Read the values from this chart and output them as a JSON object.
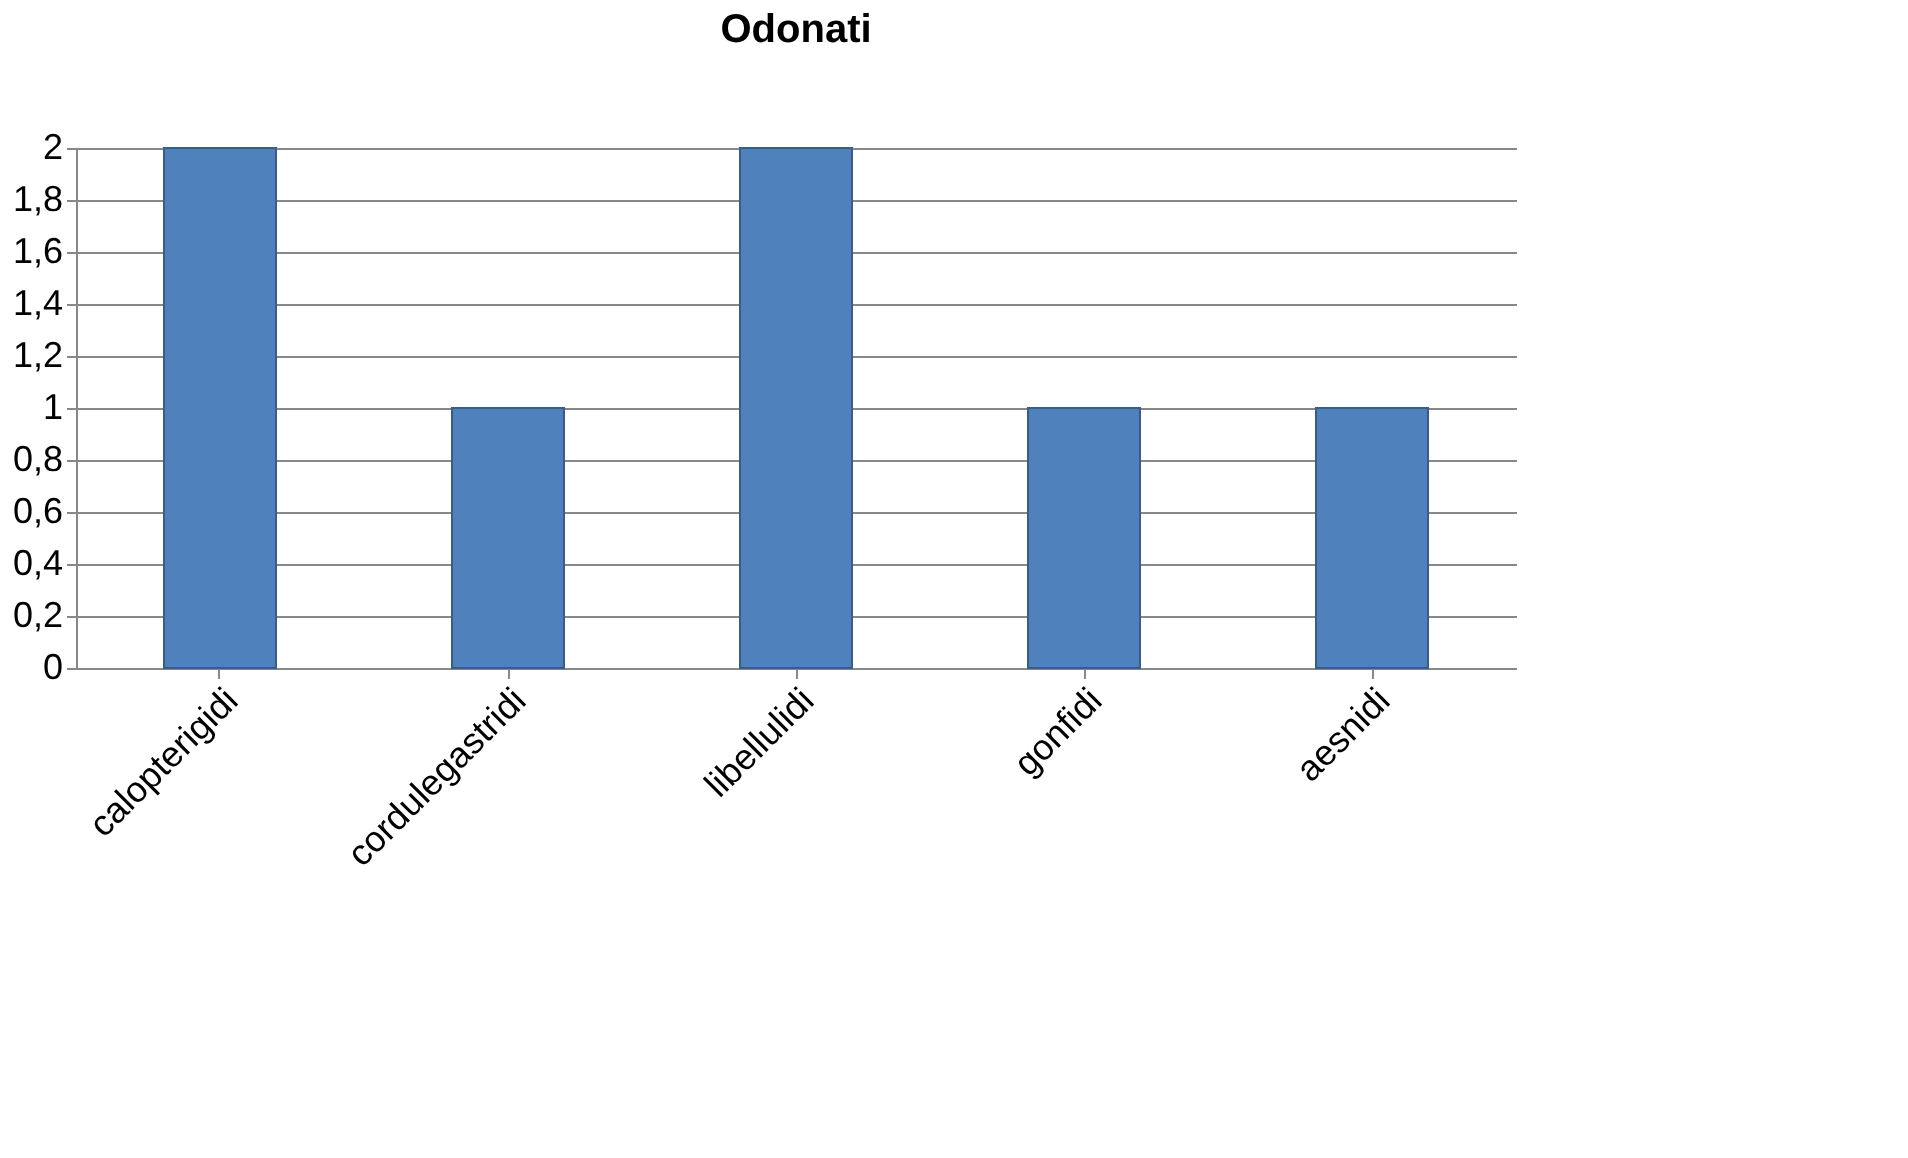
{
  "chart_data": {
    "type": "bar",
    "title": "Odonati",
    "categories": [
      "calopterigidi",
      "cordulegastridi",
      "libellulidi",
      "gonfidi",
      "aesnidi"
    ],
    "values": [
      2,
      1,
      2,
      1,
      1
    ],
    "color": "#4f81bd",
    "ylim": [
      0,
      2
    ],
    "yticks": [
      0,
      {
        "value": 0.2,
        "label": "0,2"
      },
      {
        "value": 0.4,
        "label": "0,4"
      },
      {
        "value": 0.6,
        "label": "0,6"
      },
      {
        "value": 0.8,
        "label": "0,8"
      },
      1,
      {
        "value": 1.2,
        "label": "1,2"
      },
      {
        "value": 1.4,
        "label": "1,4"
      },
      {
        "value": 1.6,
        "label": "1,6"
      },
      {
        "value": 1.8,
        "label": "1,8"
      },
      2
    ],
    "grid": "y"
  }
}
